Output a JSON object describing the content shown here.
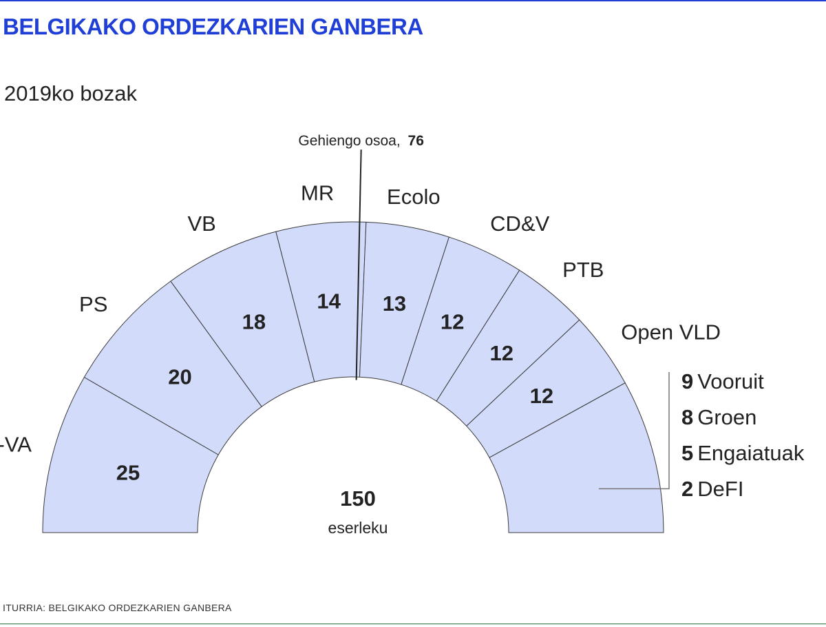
{
  "header": {
    "title": "BELGIKAKO ORDEZKARIEN GANBERA",
    "subtitle": "2019ko bozak"
  },
  "footer": {
    "source": "ITURRIA: BELGIKAKO ORDEZKARIEN GANBERA"
  },
  "colors": {
    "title": "#1f3fd6",
    "segment_fill": "#d3dbfb",
    "segment_stroke": "#3a3a3a"
  },
  "chart_data": {
    "type": "parliament",
    "total_seats": 150,
    "total_label": "eserleku",
    "majority": {
      "label": "Gehiengo osoa,",
      "value": 76
    },
    "segments": [
      {
        "name": "N-VA",
        "seats": 25,
        "show_value": true
      },
      {
        "name": "PS",
        "seats": 20,
        "show_value": true
      },
      {
        "name": "VB",
        "seats": 18,
        "show_value": true
      },
      {
        "name": "MR",
        "seats": 14,
        "show_value": true
      },
      {
        "name": "Ecolo",
        "seats": 13,
        "show_value": true
      },
      {
        "name": "CD&V",
        "seats": 12,
        "show_value": true
      },
      {
        "name": "PTB",
        "seats": 12,
        "show_value": true
      },
      {
        "name": "Open VLD",
        "seats": 12,
        "show_value": true
      },
      {
        "name": "",
        "seats": 24,
        "show_value": false
      }
    ],
    "small_parties": [
      {
        "seats": 9,
        "name": "Vooruit"
      },
      {
        "seats": 8,
        "name": "Groen"
      },
      {
        "seats": 5,
        "name": "Engaiatuak"
      },
      {
        "seats": 2,
        "name": "DeFI"
      }
    ]
  }
}
